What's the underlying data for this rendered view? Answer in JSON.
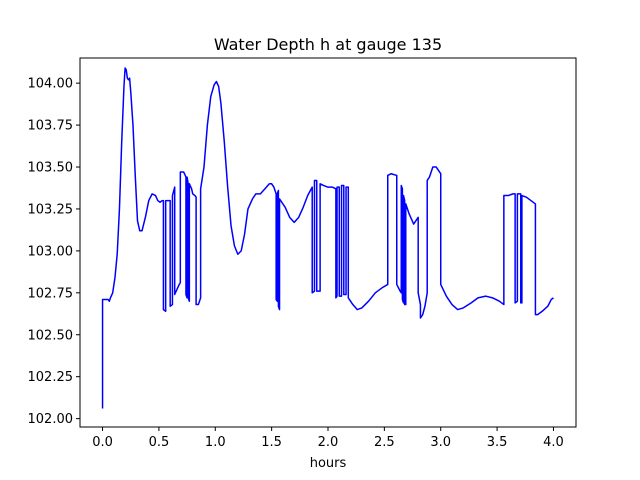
{
  "chart_data": {
    "type": "line",
    "title": "Water Depth h at gauge 135",
    "xlabel": "hours",
    "ylabel": "",
    "xlim": [
      -0.2,
      4.2
    ],
    "ylim": [
      101.95,
      104.15
    ],
    "xticks": [
      0.0,
      0.5,
      1.0,
      1.5,
      2.0,
      2.5,
      3.0,
      3.5,
      4.0
    ],
    "xtick_labels": [
      "0.0",
      "0.5",
      "1.0",
      "1.5",
      "2.0",
      "2.5",
      "3.0",
      "3.5",
      "4.0"
    ],
    "yticks": [
      102.0,
      102.25,
      102.5,
      102.75,
      103.0,
      103.25,
      103.5,
      103.75,
      104.0
    ],
    "ytick_labels": [
      "102.00",
      "102.25",
      "102.50",
      "102.75",
      "103.00",
      "103.25",
      "103.50",
      "103.75",
      "104.00"
    ],
    "grid": false,
    "legend": "none",
    "series": [
      {
        "color": "#0000ff",
        "points": [
          [
            0.0,
            102.06
          ],
          [
            0.0,
            102.71
          ],
          [
            0.03,
            102.71
          ],
          [
            0.05,
            102.71
          ],
          [
            0.06,
            102.7
          ],
          [
            0.07,
            102.72
          ],
          [
            0.09,
            102.75
          ],
          [
            0.11,
            102.84
          ],
          [
            0.13,
            102.98
          ],
          [
            0.15,
            103.25
          ],
          [
            0.17,
            103.65
          ],
          [
            0.19,
            103.98
          ],
          [
            0.2,
            104.09
          ],
          [
            0.21,
            104.08
          ],
          [
            0.22,
            104.03
          ],
          [
            0.23,
            104.02
          ],
          [
            0.24,
            104.03
          ],
          [
            0.25,
            103.95
          ],
          [
            0.27,
            103.75
          ],
          [
            0.29,
            103.45
          ],
          [
            0.31,
            103.18
          ],
          [
            0.33,
            103.12
          ],
          [
            0.35,
            103.12
          ],
          [
            0.38,
            103.2
          ],
          [
            0.41,
            103.3
          ],
          [
            0.44,
            103.34
          ],
          [
            0.47,
            103.33
          ],
          [
            0.49,
            103.3
          ],
          [
            0.51,
            103.29
          ],
          [
            0.53,
            103.3
          ],
          [
            0.54,
            103.3
          ],
          [
            0.54,
            102.65
          ],
          [
            0.56,
            102.64
          ],
          [
            0.56,
            103.3
          ],
          [
            0.6,
            103.3
          ],
          [
            0.6,
            102.67
          ],
          [
            0.62,
            102.68
          ],
          [
            0.62,
            103.33
          ],
          [
            0.64,
            103.38
          ],
          [
            0.64,
            102.74
          ],
          [
            0.66,
            102.77
          ],
          [
            0.68,
            102.8
          ],
          [
            0.69,
            102.81
          ],
          [
            0.69,
            103.47
          ],
          [
            0.72,
            103.47
          ],
          [
            0.74,
            103.44
          ],
          [
            0.74,
            102.74
          ],
          [
            0.75,
            102.72
          ],
          [
            0.75,
            103.44
          ],
          [
            0.76,
            103.4
          ],
          [
            0.76,
            102.72
          ],
          [
            0.77,
            102.7
          ],
          [
            0.77,
            103.4
          ],
          [
            0.79,
            103.37
          ],
          [
            0.8,
            103.34
          ],
          [
            0.82,
            103.33
          ],
          [
            0.83,
            103.32
          ],
          [
            0.83,
            102.68
          ],
          [
            0.85,
            102.68
          ],
          [
            0.87,
            102.72
          ],
          [
            0.87,
            103.37
          ],
          [
            0.9,
            103.5
          ],
          [
            0.93,
            103.75
          ],
          [
            0.96,
            103.92
          ],
          [
            0.99,
            103.99
          ],
          [
            1.01,
            104.01
          ],
          [
            1.03,
            103.98
          ],
          [
            1.05,
            103.88
          ],
          [
            1.08,
            103.65
          ],
          [
            1.11,
            103.38
          ],
          [
            1.14,
            103.15
          ],
          [
            1.17,
            103.03
          ],
          [
            1.2,
            102.98
          ],
          [
            1.23,
            103.0
          ],
          [
            1.26,
            103.1
          ],
          [
            1.29,
            103.25
          ],
          [
            1.33,
            103.31
          ],
          [
            1.36,
            103.34
          ],
          [
            1.4,
            103.34
          ],
          [
            1.44,
            103.37
          ],
          [
            1.48,
            103.4
          ],
          [
            1.5,
            103.4
          ],
          [
            1.52,
            103.38
          ],
          [
            1.54,
            103.34
          ],
          [
            1.54,
            102.71
          ],
          [
            1.55,
            102.7
          ],
          [
            1.55,
            103.34
          ],
          [
            1.56,
            103.36
          ],
          [
            1.56,
            102.67
          ],
          [
            1.57,
            102.65
          ],
          [
            1.57,
            103.31
          ],
          [
            1.62,
            103.26
          ],
          [
            1.66,
            103.2
          ],
          [
            1.7,
            103.17
          ],
          [
            1.74,
            103.2
          ],
          [
            1.78,
            103.26
          ],
          [
            1.82,
            103.33
          ],
          [
            1.86,
            103.38
          ],
          [
            1.86,
            102.75
          ],
          [
            1.88,
            102.76
          ],
          [
            1.88,
            103.42
          ],
          [
            1.9,
            103.42
          ],
          [
            1.9,
            102.76
          ],
          [
            1.93,
            102.76
          ],
          [
            1.93,
            103.4
          ],
          [
            1.96,
            103.39
          ],
          [
            2.0,
            103.38
          ],
          [
            2.04,
            103.38
          ],
          [
            2.07,
            103.37
          ],
          [
            2.07,
            102.72
          ],
          [
            2.08,
            102.73
          ],
          [
            2.08,
            103.38
          ],
          [
            2.1,
            103.38
          ],
          [
            2.1,
            102.73
          ],
          [
            2.12,
            102.73
          ],
          [
            2.12,
            103.39
          ],
          [
            2.14,
            103.39
          ],
          [
            2.14,
            102.74
          ],
          [
            2.16,
            102.74
          ],
          [
            2.16,
            103.38
          ],
          [
            2.18,
            103.38
          ],
          [
            2.18,
            102.72
          ],
          [
            2.22,
            102.68
          ],
          [
            2.26,
            102.65
          ],
          [
            2.3,
            102.66
          ],
          [
            2.36,
            102.7
          ],
          [
            2.42,
            102.75
          ],
          [
            2.48,
            102.78
          ],
          [
            2.53,
            102.8
          ],
          [
            2.53,
            103.45
          ],
          [
            2.56,
            103.46
          ],
          [
            2.61,
            103.45
          ],
          [
            2.61,
            102.8
          ],
          [
            2.64,
            102.76
          ],
          [
            2.65,
            102.75
          ],
          [
            2.65,
            103.39
          ],
          [
            2.66,
            103.37
          ],
          [
            2.66,
            102.71
          ],
          [
            2.67,
            102.69
          ],
          [
            2.67,
            103.33
          ],
          [
            2.68,
            103.3
          ],
          [
            2.68,
            102.68
          ],
          [
            2.69,
            102.68
          ],
          [
            2.69,
            103.28
          ],
          [
            2.72,
            103.22
          ],
          [
            2.76,
            103.16
          ],
          [
            2.8,
            103.2
          ],
          [
            2.8,
            102.75
          ],
          [
            2.82,
            102.68
          ],
          [
            2.82,
            102.6
          ],
          [
            2.84,
            102.62
          ],
          [
            2.86,
            102.67
          ],
          [
            2.88,
            102.75
          ],
          [
            2.88,
            103.42
          ],
          [
            2.9,
            103.44
          ],
          [
            2.93,
            103.5
          ],
          [
            2.96,
            103.5
          ],
          [
            3.0,
            103.46
          ],
          [
            3.0,
            102.8
          ],
          [
            3.05,
            102.73
          ],
          [
            3.1,
            102.68
          ],
          [
            3.15,
            102.65
          ],
          [
            3.2,
            102.66
          ],
          [
            3.27,
            102.69
          ],
          [
            3.33,
            102.72
          ],
          [
            3.4,
            102.73
          ],
          [
            3.46,
            102.72
          ],
          [
            3.52,
            102.7
          ],
          [
            3.56,
            102.68
          ],
          [
            3.56,
            103.33
          ],
          [
            3.6,
            103.33
          ],
          [
            3.64,
            103.34
          ],
          [
            3.66,
            103.34
          ],
          [
            3.66,
            102.69
          ],
          [
            3.68,
            102.7
          ],
          [
            3.68,
            103.34
          ],
          [
            3.71,
            103.34
          ],
          [
            3.71,
            102.69
          ],
          [
            3.72,
            102.69
          ],
          [
            3.72,
            103.33
          ],
          [
            3.76,
            103.32
          ],
          [
            3.8,
            103.3
          ],
          [
            3.84,
            103.28
          ],
          [
            3.84,
            102.62
          ],
          [
            3.86,
            102.62
          ],
          [
            3.9,
            102.64
          ],
          [
            3.95,
            102.67
          ],
          [
            3.98,
            102.71
          ],
          [
            4.0,
            102.72
          ]
        ]
      }
    ]
  }
}
